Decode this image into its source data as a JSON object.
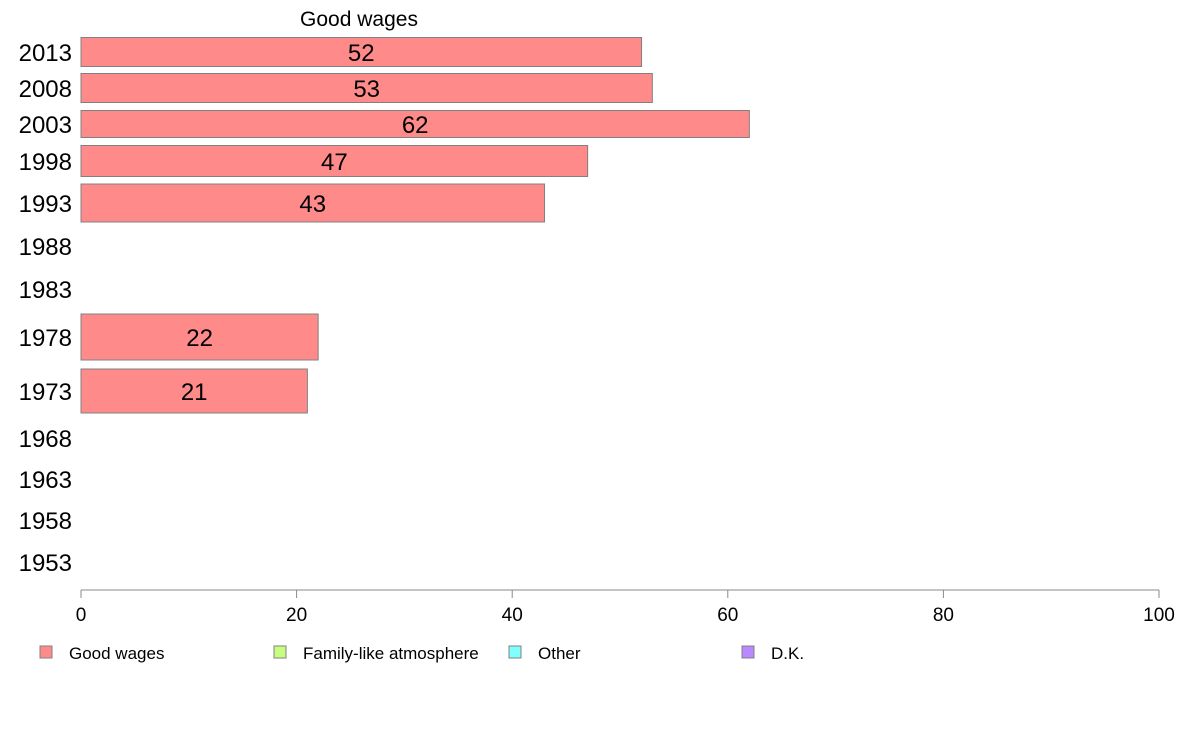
{
  "chart_data": {
    "type": "bar",
    "orientation": "horizontal",
    "title": "Good wages",
    "categories": [
      "2013",
      "2008",
      "2003",
      "1998",
      "1993",
      "1988",
      "1983",
      "1978",
      "1973",
      "1968",
      "1963",
      "1958",
      "1953"
    ],
    "series": [
      {
        "name": "Good wages",
        "values": [
          52,
          53,
          62,
          47,
          43,
          null,
          null,
          22,
          21,
          null,
          null,
          null,
          null
        ]
      }
    ],
    "xlim": [
      0,
      100
    ],
    "xticks": [
      0,
      20,
      40,
      60,
      80,
      100
    ],
    "legend": {
      "placement": "bottom",
      "entries": [
        {
          "label": "Good wages",
          "color": "#ff8a8a"
        },
        {
          "label": "Family-like atmosphere",
          "color": "#c6ff80"
        },
        {
          "label": "Other",
          "color": "#80ffff"
        },
        {
          "label": "D.K.",
          "color": "#b98aff"
        }
      ]
    },
    "grid": false
  }
}
